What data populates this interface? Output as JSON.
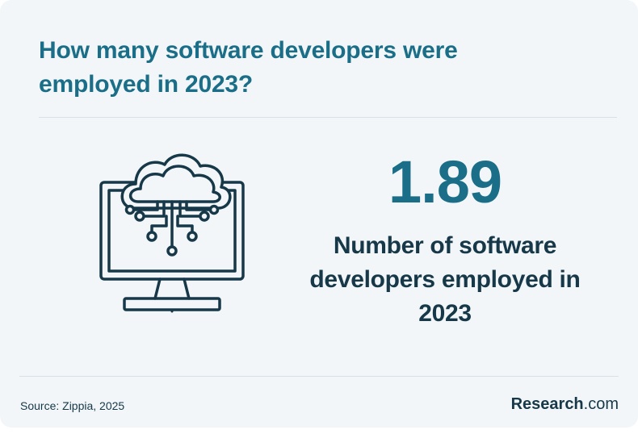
{
  "header": {
    "title": "How many software developers were employed in 2023?"
  },
  "stat": {
    "value": "1.89",
    "description": "Number of software developers employed in 2023"
  },
  "footer": {
    "source": "Source: Zippia, 2025",
    "brand_name": "Research",
    "brand_tld": ".com"
  },
  "illustration": {
    "icon": "cloud-computing-monitor-icon"
  },
  "colors": {
    "accent": "#1a6e87",
    "dark_text": "#163848",
    "background": "#f3f6f8",
    "divider": "#d9e1e6"
  }
}
